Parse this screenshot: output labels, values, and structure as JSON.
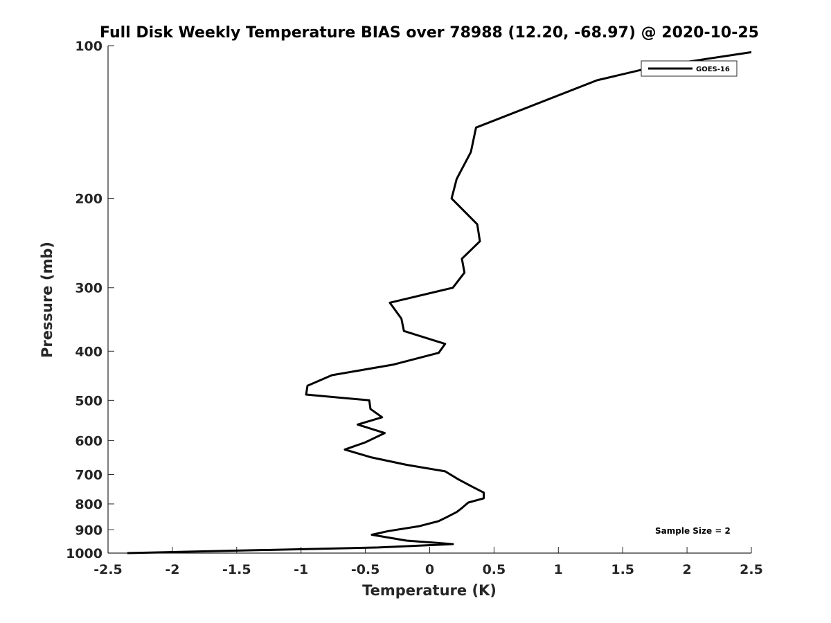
{
  "chart_data": {
    "type": "line",
    "title": "Full Disk Weekly Temperature BIAS over 78988 (12.20, -68.97) @ 2020-10-25",
    "xlabel": "Temperature (K)",
    "ylabel": "Pressure (mb)",
    "xlim": [
      -2.5,
      2.5
    ],
    "ylim": [
      100,
      1000
    ],
    "y_scale": "log",
    "y_reversed": true,
    "x_ticks": [
      -2.5,
      -2,
      -1.5,
      -1,
      -0.5,
      0,
      0.5,
      1,
      1.5,
      2,
      2.5
    ],
    "x_tick_labels": [
      "-2.5",
      "-2",
      "-1.5",
      "-1",
      "-0.5",
      "0",
      "0.5",
      "1",
      "1.5",
      "2",
      "2.5"
    ],
    "y_ticks": [
      100,
      200,
      300,
      400,
      500,
      600,
      700,
      800,
      900,
      1000
    ],
    "y_tick_labels": [
      "100",
      "200",
      "300",
      "400",
      "500",
      "600",
      "700",
      "800",
      "900",
      "1000"
    ],
    "grid": false,
    "legend_position": "top-right",
    "annotation": "Sample Size = 2",
    "series": [
      {
        "name": "GOES-16",
        "color": "#000000",
        "points": [
          {
            "x": 2.5,
            "y": 103
          },
          {
            "x": 1.75,
            "y": 110
          },
          {
            "x": 1.3,
            "y": 117
          },
          {
            "x": 0.36,
            "y": 145
          },
          {
            "x": 0.32,
            "y": 162
          },
          {
            "x": 0.21,
            "y": 183
          },
          {
            "x": 0.17,
            "y": 200
          },
          {
            "x": 0.37,
            "y": 225
          },
          {
            "x": 0.39,
            "y": 243
          },
          {
            "x": 0.25,
            "y": 263
          },
          {
            "x": 0.27,
            "y": 280
          },
          {
            "x": 0.18,
            "y": 300
          },
          {
            "x": -0.31,
            "y": 321
          },
          {
            "x": -0.22,
            "y": 345
          },
          {
            "x": -0.2,
            "y": 365
          },
          {
            "x": 0.12,
            "y": 387
          },
          {
            "x": 0.07,
            "y": 403
          },
          {
            "x": -0.28,
            "y": 425
          },
          {
            "x": -0.76,
            "y": 446
          },
          {
            "x": -0.95,
            "y": 468
          },
          {
            "x": -0.96,
            "y": 487
          },
          {
            "x": -0.47,
            "y": 500
          },
          {
            "x": -0.46,
            "y": 520
          },
          {
            "x": -0.37,
            "y": 540
          },
          {
            "x": -0.56,
            "y": 558
          },
          {
            "x": -0.35,
            "y": 580
          },
          {
            "x": -0.5,
            "y": 605
          },
          {
            "x": -0.66,
            "y": 625
          },
          {
            "x": -0.45,
            "y": 648
          },
          {
            "x": -0.18,
            "y": 670
          },
          {
            "x": 0.12,
            "y": 690
          },
          {
            "x": 0.22,
            "y": 715
          },
          {
            "x": 0.33,
            "y": 740
          },
          {
            "x": 0.42,
            "y": 760
          },
          {
            "x": 0.42,
            "y": 780
          },
          {
            "x": 0.3,
            "y": 795
          },
          {
            "x": 0.25,
            "y": 815
          },
          {
            "x": 0.21,
            "y": 830
          },
          {
            "x": 0.13,
            "y": 850
          },
          {
            "x": 0.07,
            "y": 865
          },
          {
            "x": -0.08,
            "y": 885
          },
          {
            "x": -0.32,
            "y": 905
          },
          {
            "x": -0.45,
            "y": 920
          },
          {
            "x": -0.18,
            "y": 945
          },
          {
            "x": 0.18,
            "y": 960
          },
          {
            "x": -0.4,
            "y": 975
          },
          {
            "x": -1.2,
            "y": 985
          },
          {
            "x": -2.35,
            "y": 1000
          }
        ]
      }
    ]
  }
}
